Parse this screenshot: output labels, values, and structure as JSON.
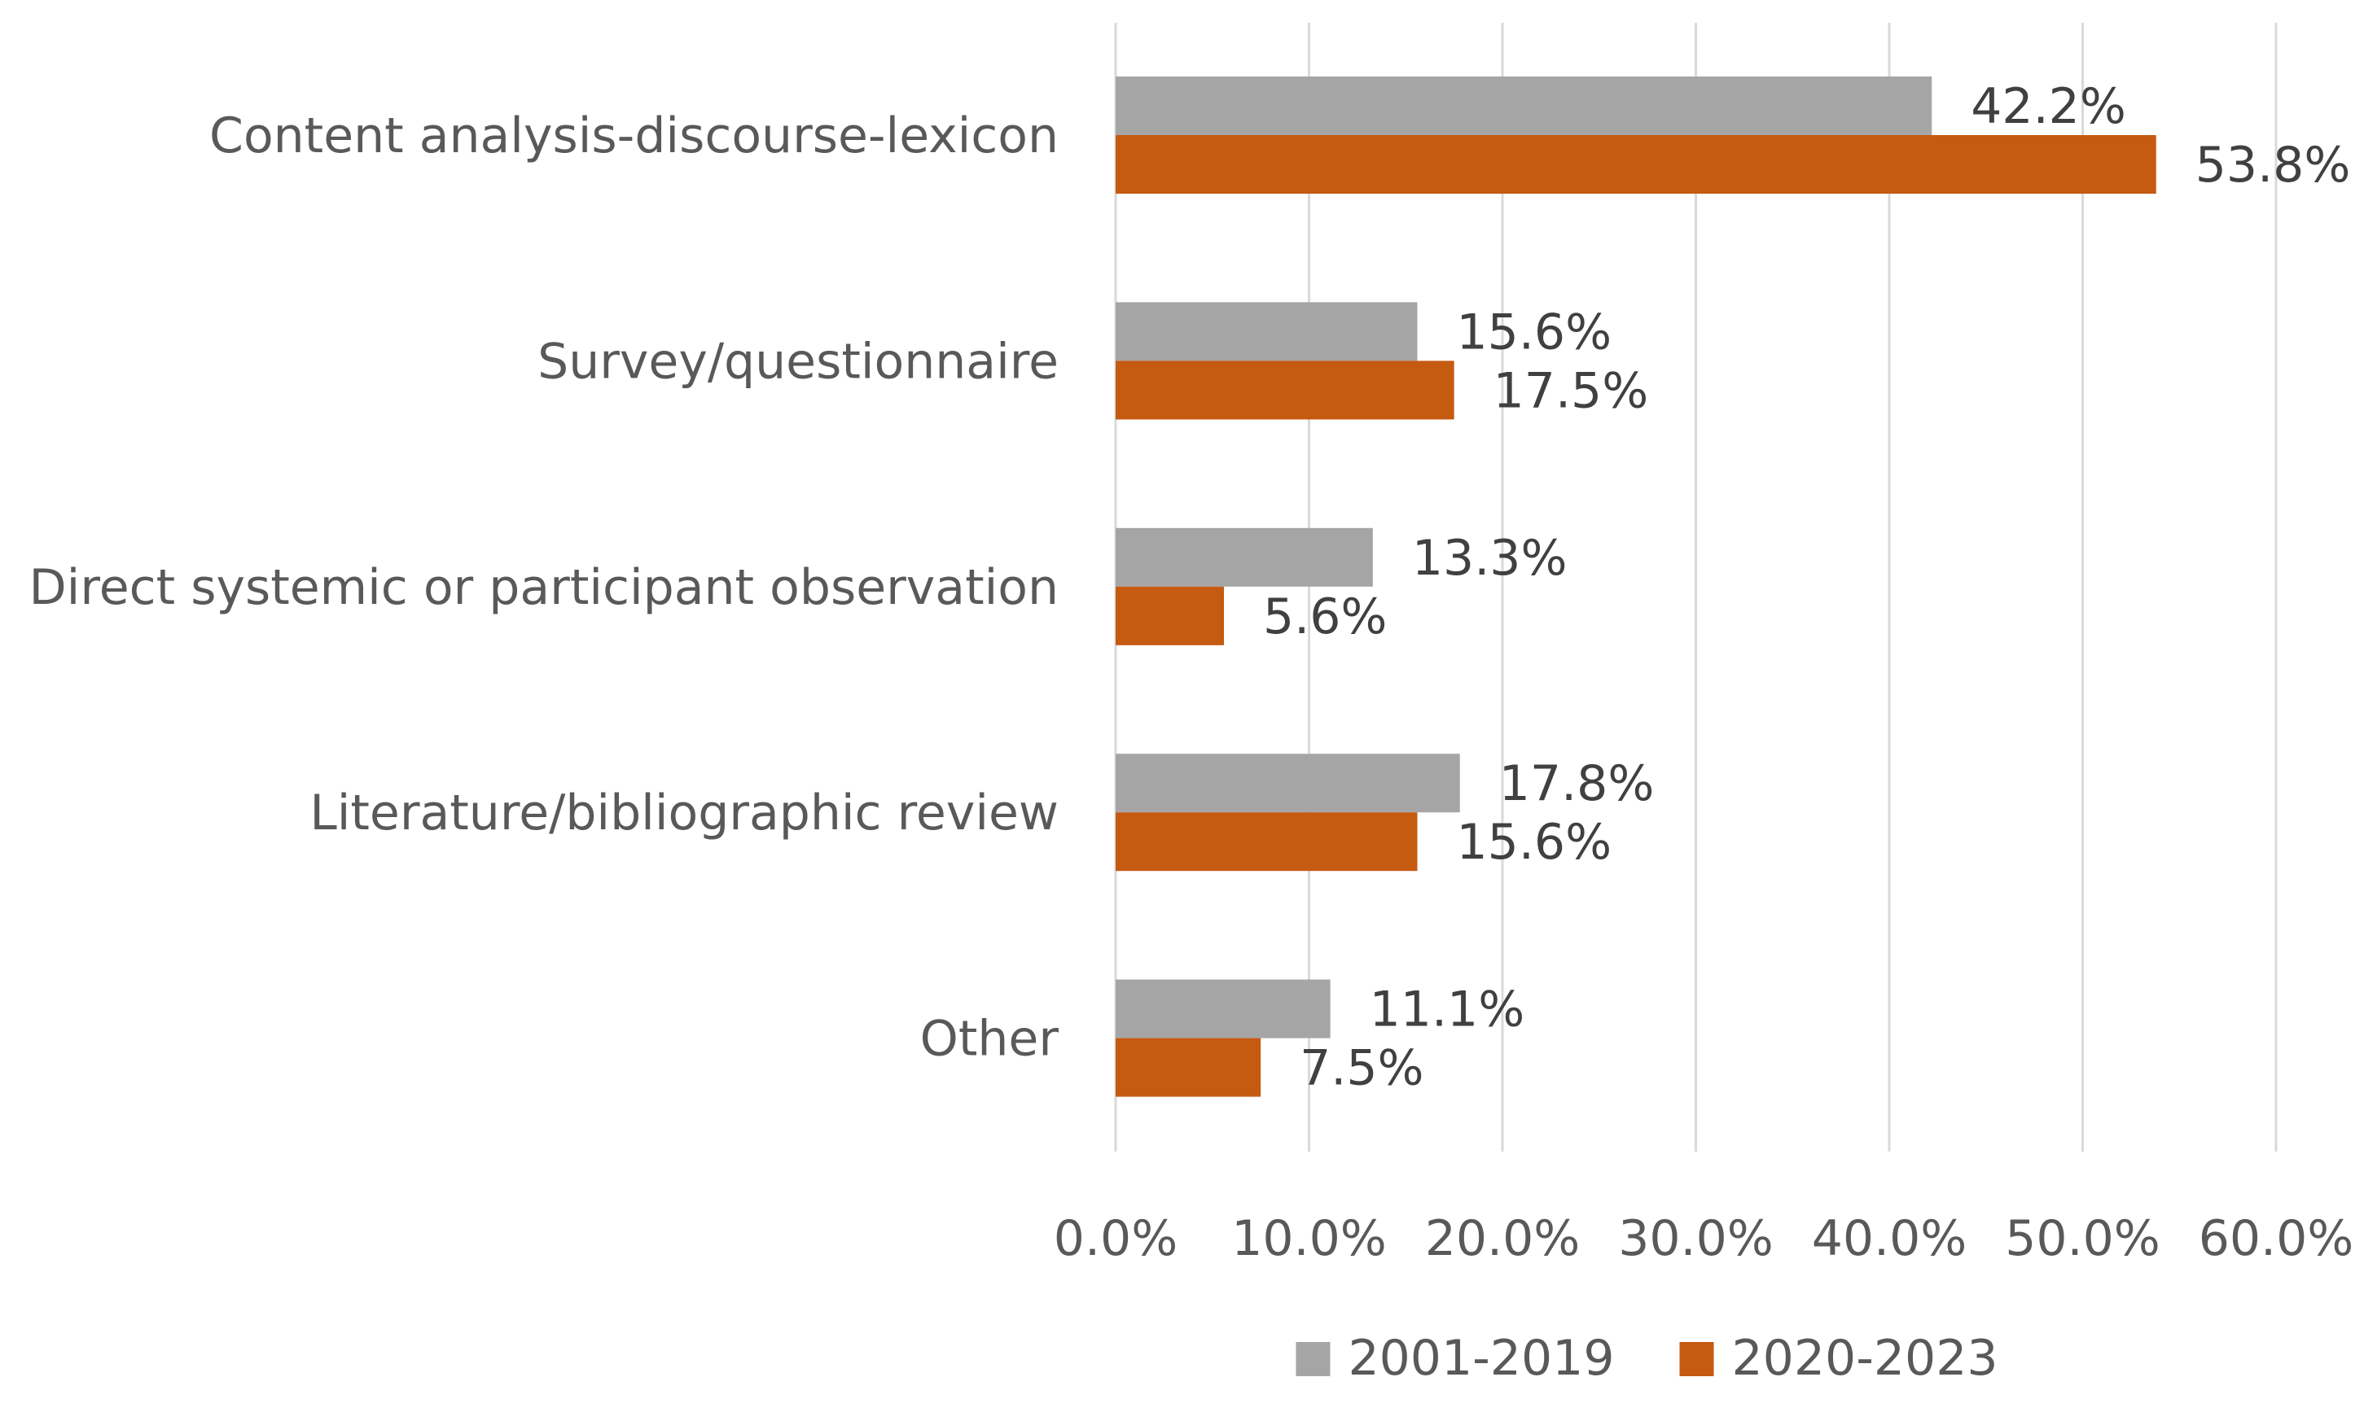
{
  "chart_data": {
    "type": "bar",
    "orientation": "horizontal",
    "categories": [
      "Content analysis-discourse-lexicon",
      "Survey/questionnaire",
      "Direct systemic or participant observation",
      "Literature/bibliographic review",
      "Other"
    ],
    "series": [
      {
        "name": "2001-2019",
        "color": "#a5a5a5",
        "values": [
          42.2,
          15.6,
          13.3,
          17.8,
          11.1
        ],
        "labels": [
          "42.2%",
          "15.6%",
          "13.3%",
          "17.8%",
          "11.1%"
        ]
      },
      {
        "name": "2020-2023",
        "color": "#c55a11",
        "values": [
          53.8,
          17.5,
          5.6,
          15.6,
          7.5
        ],
        "labels": [
          "53.8%",
          "17.5%",
          "5.6%",
          "15.6%",
          "7.5%"
        ]
      }
    ],
    "xlim": [
      0,
      60
    ],
    "xticks": [
      0,
      10,
      20,
      30,
      40,
      50,
      60
    ],
    "xtick_labels": [
      "0.0%",
      "10.0%",
      "20.0%",
      "30.0%",
      "40.0%",
      "50.0%",
      "60.0%"
    ],
    "grid": "vertical",
    "legend_position": "bottom",
    "title": "",
    "xlabel": "",
    "ylabel": ""
  }
}
